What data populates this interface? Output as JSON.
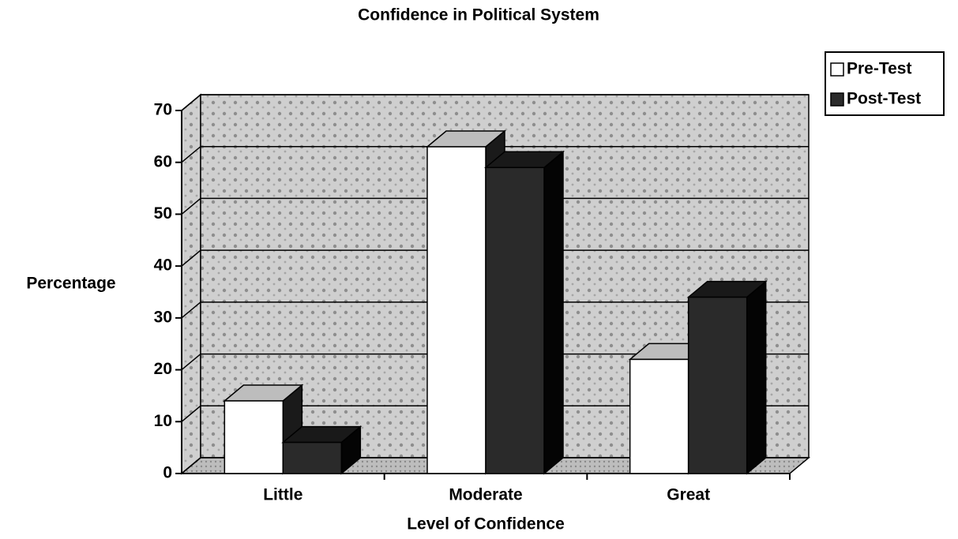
{
  "chart_data": {
    "type": "bar3d",
    "title": "Confidence in Political System",
    "x_label": "Level of Confidence",
    "y_label": "Percentage",
    "categories": [
      "Little",
      "Moderate",
      "Great"
    ],
    "series": [
      {
        "name": "Pre-Test",
        "color": "#ffffff",
        "values": [
          14,
          63,
          22
        ]
      },
      {
        "name": "Post-Test",
        "color": "#2a2a2a",
        "values": [
          6,
          59,
          34
        ]
      }
    ],
    "ylim": [
      0,
      70
    ],
    "yticks": [
      0,
      10,
      20,
      30,
      40,
      50,
      60,
      70
    ],
    "grid": true,
    "legend": "top-right"
  }
}
